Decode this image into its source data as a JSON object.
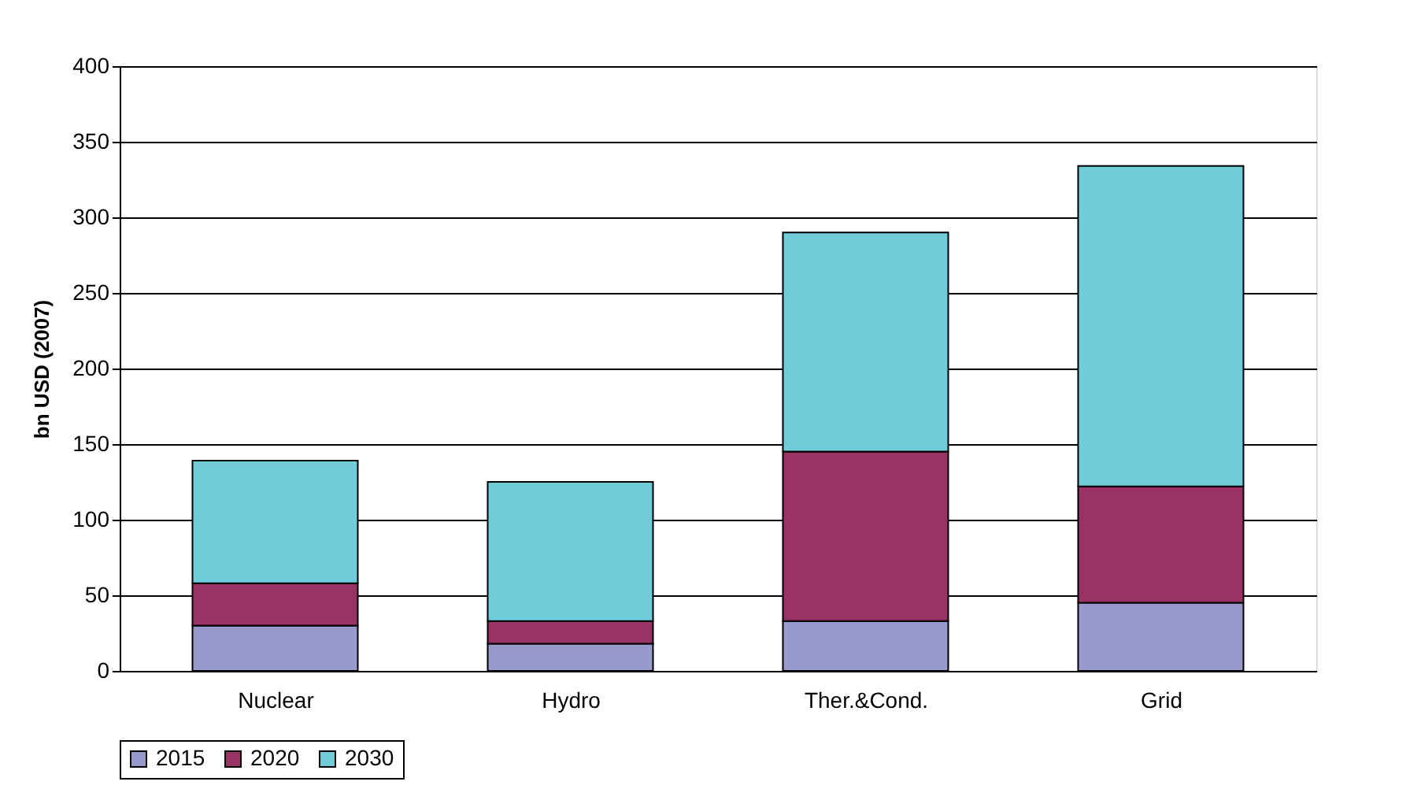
{
  "chart_data": {
    "type": "bar",
    "stacked": true,
    "ylabel": "bn USD (2007)",
    "categories": [
      "Nuclear",
      "Hydro",
      "Ther.&Cond.",
      "Grid"
    ],
    "series": [
      {
        "name": "2015",
        "color": "#9999cc",
        "values": [
          30,
          18,
          33,
          45
        ]
      },
      {
        "name": "2020",
        "color": "#993366",
        "values": [
          28,
          15,
          112,
          77
        ]
      },
      {
        "name": "2030",
        "color": "#70ccd8",
        "values": [
          81,
          92,
          145,
          212
        ]
      }
    ],
    "ylim": [
      0,
      400
    ],
    "yticks": [
      0,
      50,
      100,
      150,
      200,
      250,
      300,
      350,
      400
    ],
    "grid": "y",
    "legend": "bottom"
  }
}
